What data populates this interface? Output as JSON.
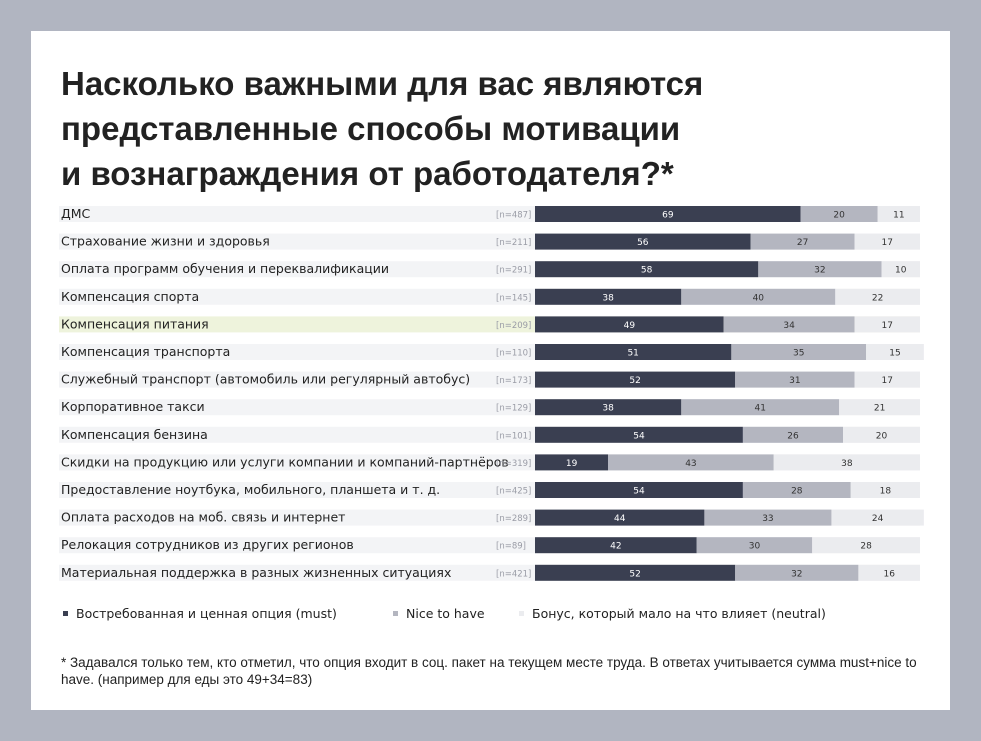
{
  "title": "Насколько важными для вас являются\nпредставленные способы мотивации\nи вознаграждения от работодателя?*",
  "chart_data": {
    "type": "bar",
    "stacked": true,
    "orientation": "horizontal",
    "categories": [
      "ДМС",
      "Страхование жизни и здоровья",
      "Оплата программ обучения и переквалификации",
      "Компенсация спорта",
      "Компенсация питания",
      "Компенсация транспорта",
      "Служебный транспорт (автомобиль или регулярный автобус)",
      "Корпоративное такси",
      "Компенсация бензина",
      "Скидки на продукцию или услуги компании и компаний-партнёров",
      "Предоставление ноутбука, мобильного, планшета и т. д.",
      "Оплата расходов на моб. связь и интернет",
      "Релокация сотрудников из других регионов",
      "Материальная поддержка в разных жизненных ситуациях"
    ],
    "sample_sizes": [
      "[n=487]",
      "[n=211]",
      "[n=291]",
      "[n=145]",
      "[n=209]",
      "[n=110]",
      "[n=173]",
      "[n=129]",
      "[n=101]",
      "[n=319]",
      "[n=425]",
      "[n=289]",
      "[n=89]",
      "[n=421]"
    ],
    "highlighted_row": 4,
    "series": [
      {
        "name": "Востребованная и ценная опция (must)",
        "color": "#3a3f51",
        "values": [
          69,
          56,
          58,
          38,
          49,
          51,
          52,
          38,
          54,
          19,
          54,
          44,
          42,
          52
        ]
      },
      {
        "name": "Nice to have",
        "color": "#b4b6c0",
        "values": [
          20,
          27,
          32,
          40,
          34,
          35,
          31,
          41,
          26,
          43,
          28,
          33,
          30,
          32
        ]
      },
      {
        "name": "Бонус, который мало на что влияет (neutral)",
        "color": "#ebecef",
        "values": [
          11,
          17,
          10,
          22,
          17,
          15,
          17,
          21,
          20,
          38,
          18,
          24,
          28,
          16
        ]
      }
    ],
    "xlim": [
      0,
      100
    ]
  },
  "footnote": "* Задавался только тем, кто отметил, что опция входит в соц. пакет на текущем месте труда. В ответах учитывается сумма must+nice to have. (например для еды это 49+34=83)"
}
